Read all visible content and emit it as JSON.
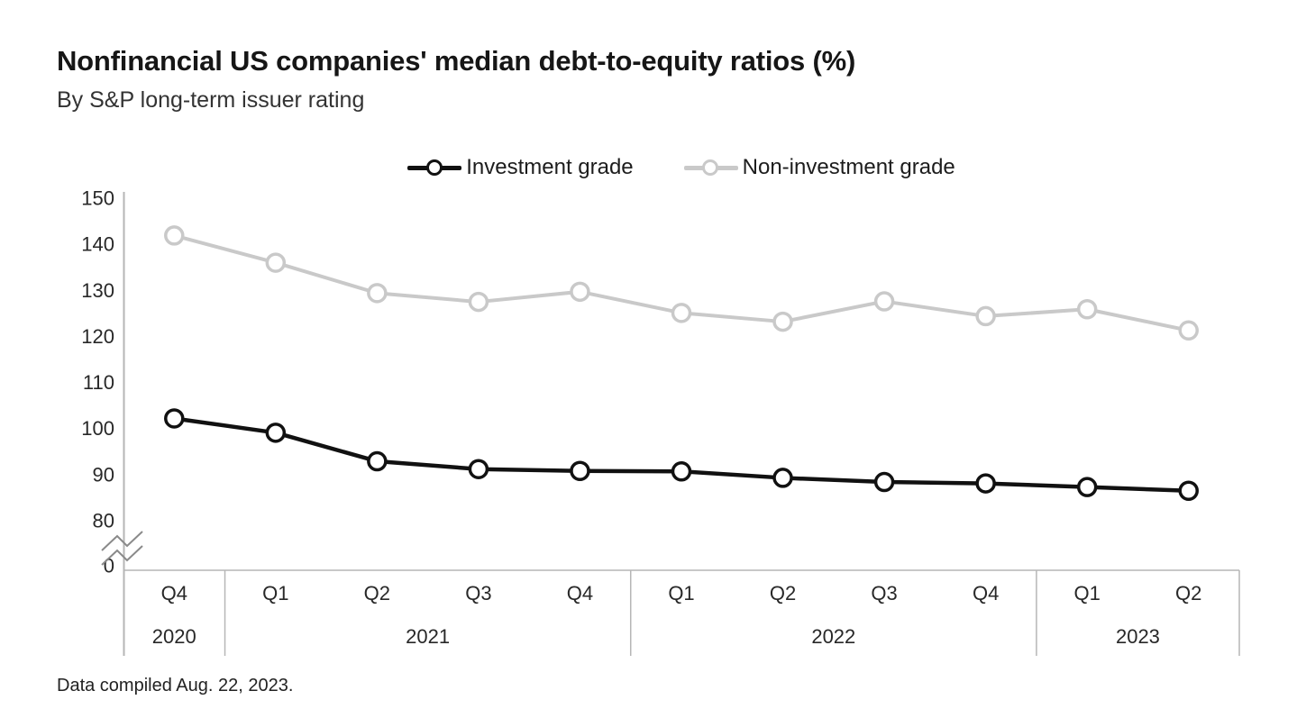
{
  "header": {
    "title": "Nonfinancial US companies' median debt-to-equity ratios (%)",
    "subtitle": "By S&P long-term issuer rating"
  },
  "footer": {
    "note": "Data compiled Aug. 22, 2023."
  },
  "colors": {
    "investment_grade": "#111111",
    "non_investment_grade": "#c9c9c9",
    "axis_line": "#b6b6b6",
    "axis_break_mark": "#8a8a8a",
    "tick_text": "#282828",
    "background": "#ffffff"
  },
  "chart_data": {
    "type": "line",
    "title": "Nonfinancial US companies' median debt-to-equity ratios (%)",
    "subtitle": "By S&P long-term issuer rating",
    "footnote": "Data compiled Aug. 22, 2023.",
    "legend_position": "top-center",
    "grid": false,
    "ylim": [
      80,
      150
    ],
    "y_axis_break_between": [
      0,
      80
    ],
    "y_ticks": [
      0,
      80,
      90,
      100,
      110,
      120,
      130,
      140,
      150
    ],
    "x_quarters": [
      "Q4",
      "Q1",
      "Q2",
      "Q3",
      "Q4",
      "Q1",
      "Q2",
      "Q3",
      "Q4",
      "Q1",
      "Q2"
    ],
    "x_year_groups": [
      {
        "label": "2020",
        "span": 1
      },
      {
        "label": "2021",
        "span": 4
      },
      {
        "label": "2022",
        "span": 4
      },
      {
        "label": "2023",
        "span": 2
      }
    ],
    "series": [
      {
        "name": "Investment grade",
        "color": "#111111",
        "values": [
          102.2,
          99.1,
          92.9,
          91.2,
          90.8,
          90.7,
          89.3,
          88.4,
          88.1,
          87.3,
          86.5
        ]
      },
      {
        "name": "Non-investment grade",
        "color": "#c9c9c9",
        "values": [
          141.9,
          136.0,
          129.4,
          127.5,
          129.7,
          125.1,
          123.2,
          127.6,
          124.4,
          125.9,
          121.3
        ]
      }
    ]
  }
}
